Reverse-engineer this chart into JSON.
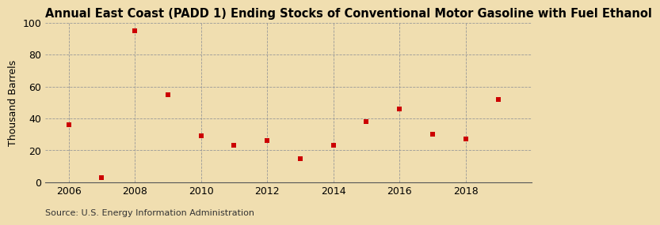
{
  "title": "Annual East Coast (PADD 1) Ending Stocks of Conventional Motor Gasoline with Fuel Ethanol",
  "ylabel": "Thousand Barrels",
  "source": "Source: U.S. Energy Information Administration",
  "fig_background_color": "#f0deb0",
  "plot_background_color": "#f0deb0",
  "years": [
    2006,
    2007,
    2008,
    2009,
    2010,
    2011,
    2012,
    2013,
    2014,
    2015,
    2016,
    2017,
    2018,
    2019
  ],
  "values": [
    36,
    3,
    95,
    55,
    29,
    23,
    26,
    15,
    23,
    38,
    46,
    30,
    27,
    52
  ],
  "marker_color": "#cc0000",
  "marker": "s",
  "marker_size": 5,
  "xlim": [
    2005.3,
    2020.0
  ],
  "ylim": [
    0,
    100
  ],
  "yticks": [
    0,
    20,
    40,
    60,
    80,
    100
  ],
  "xticks": [
    2006,
    2008,
    2010,
    2012,
    2014,
    2016,
    2018
  ],
  "grid_color": "#999999",
  "title_fontsize": 10.5,
  "axis_fontsize": 9,
  "ylabel_fontsize": 9,
  "source_fontsize": 8
}
